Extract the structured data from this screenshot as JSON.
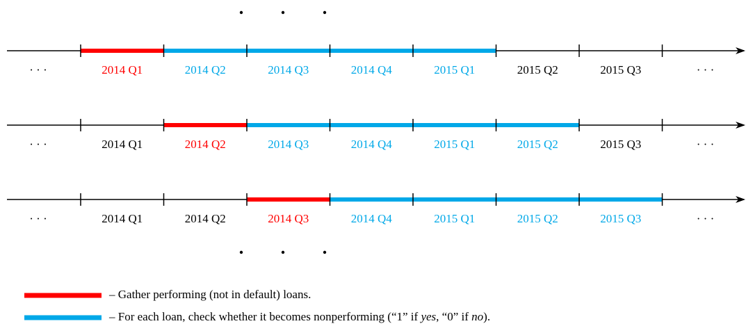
{
  "timelines": [
    {
      "left": "· · ·",
      "right": "· · ·",
      "periods": [
        {
          "label": "2014 Q1",
          "color": "#ff0000"
        },
        {
          "label": "2014 Q2",
          "color": "#00a8e8"
        },
        {
          "label": "2014 Q3",
          "color": "#00a8e8"
        },
        {
          "label": "2014 Q4",
          "color": "#00a8e8"
        },
        {
          "label": "2015 Q1",
          "color": "#00a8e8"
        },
        {
          "label": "2015 Q2",
          "color": "#000000"
        },
        {
          "label": "2015 Q3",
          "color": "#000000"
        }
      ]
    },
    {
      "left": "· · ·",
      "right": "· · ·",
      "periods": [
        {
          "label": "2014 Q1",
          "color": "#000000"
        },
        {
          "label": "2014 Q2",
          "color": "#ff0000"
        },
        {
          "label": "2014 Q3",
          "color": "#00a8e8"
        },
        {
          "label": "2014 Q4",
          "color": "#00a8e8"
        },
        {
          "label": "2015 Q1",
          "color": "#00a8e8"
        },
        {
          "label": "2015 Q2",
          "color": "#00a8e8"
        },
        {
          "label": "2015 Q3",
          "color": "#000000"
        }
      ]
    },
    {
      "left": "· · ·",
      "right": "· · ·",
      "periods": [
        {
          "label": "2014 Q1",
          "color": "#000000"
        },
        {
          "label": "2014 Q2",
          "color": "#000000"
        },
        {
          "label": "2014 Q3",
          "color": "#ff0000"
        },
        {
          "label": "2014 Q4",
          "color": "#00a8e8"
        },
        {
          "label": "2015 Q1",
          "color": "#00a8e8"
        },
        {
          "label": "2015 Q2",
          "color": "#00a8e8"
        },
        {
          "label": "2015 Q3",
          "color": "#00a8e8"
        }
      ]
    }
  ],
  "legend": [
    {
      "color": "#ff0000",
      "parts": [
        {
          "text": "– Gather performing (not in default) loans."
        }
      ]
    },
    {
      "color": "#00a8e8",
      "parts": [
        {
          "text": "– For each loan, check whether it becomes nonperforming (“1” if "
        },
        {
          "text": "yes",
          "italic": true
        },
        {
          "text": ", “0” if "
        },
        {
          "text": "no",
          "italic": true
        },
        {
          "text": ")."
        }
      ]
    }
  ]
}
